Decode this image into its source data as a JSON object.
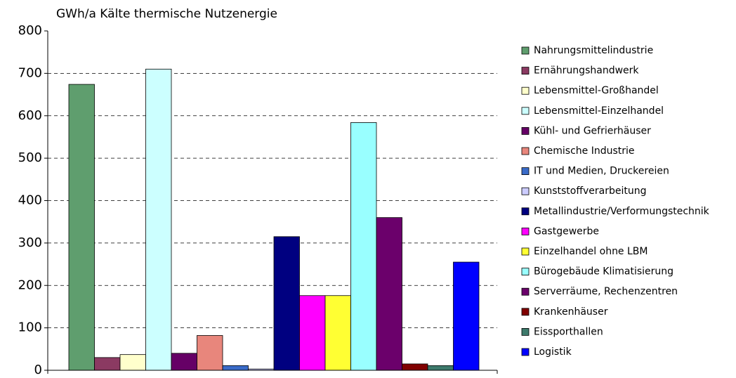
{
  "chart_data": {
    "type": "bar",
    "title": "GWh/a Kälte thermische Nutzenergie",
    "categories": [
      null
    ],
    "series": [
      {
        "name": "Nahrungsmittelindustrie",
        "color": "#5f9e6e",
        "values": [
          674
        ]
      },
      {
        "name": "Ernährungshandwerk",
        "color": "#8b3a62",
        "values": [
          30
        ]
      },
      {
        "name": "Lebensmittel-Großhandel",
        "color": "#ffffcc",
        "values": [
          37
        ]
      },
      {
        "name": "Lebensmittel-Einzelhandel",
        "color": "#ccffff",
        "values": [
          710
        ]
      },
      {
        "name": "Kühl- und Gefrierhäuser",
        "color": "#660066",
        "values": [
          40
        ]
      },
      {
        "name": "Chemische Industrie",
        "color": "#e8867c",
        "values": [
          82
        ]
      },
      {
        "name": "IT und Medien, Druckereien",
        "color": "#3a6bc8",
        "values": [
          11
        ]
      },
      {
        "name": "Kunststoffverarbeitung",
        "color": "#ccccff",
        "values": [
          3
        ]
      },
      {
        "name": "Metallindustrie/Verformungstechnik",
        "color": "#000080",
        "values": [
          315
        ]
      },
      {
        "name": "Gastgewerbe",
        "color": "#ff00ff",
        "values": [
          176
        ]
      },
      {
        "name": "Einzelhandel ohne LBM",
        "color": "#ffff33",
        "values": [
          176
        ]
      },
      {
        "name": "Bürogebäude Klimatisierung",
        "color": "#99ffff",
        "values": [
          584
        ]
      },
      {
        "name": "Serverräume, Rechenzentren",
        "color": "#6b006b",
        "values": [
          360
        ]
      },
      {
        "name": "Krankenhäuser",
        "color": "#800000",
        "values": [
          15
        ]
      },
      {
        "name": "Eissporthallen",
        "color": "#3d7a6c",
        "values": [
          11
        ]
      },
      {
        "name": "Logistik",
        "color": "#0000ff",
        "values": [
          255
        ]
      }
    ],
    "ylim": [
      0,
      800
    ],
    "yticks": [
      0,
      100,
      200,
      300,
      400,
      500,
      600,
      700,
      800
    ],
    "grid": true,
    "legend": "right"
  }
}
